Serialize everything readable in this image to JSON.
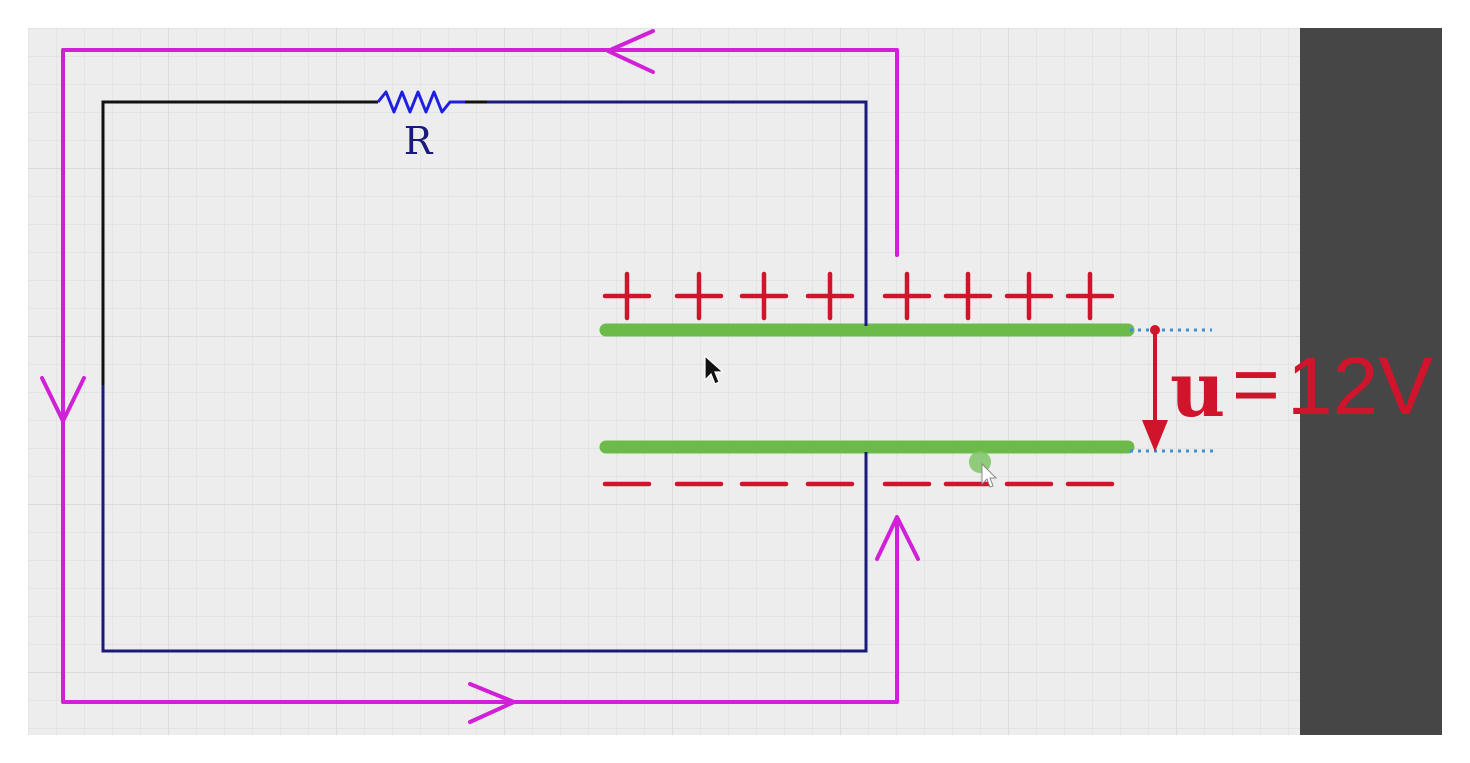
{
  "labels": {
    "resistor": "R",
    "voltage_symbol": "u",
    "voltage_equals": "=",
    "voltage_value": "12V"
  },
  "charges": {
    "top_plate_sign": "+",
    "top_plate_count": 8,
    "bottom_plate_sign": "−",
    "bottom_plate_count": 8
  },
  "colors": {
    "background": "#ededed",
    "grid": "#d8d8d8",
    "wire": "#1a1a7a",
    "wire_black": "#111111",
    "current_path": "#d21fd8",
    "plate": "#6cba4a",
    "charge": "#d0142b",
    "voltage": "#d0142b",
    "dotted_guide": "#3d8fd6",
    "side_panel": "#474647"
  },
  "icons": {
    "cursor": "mouse-pointer-icon",
    "cursor_secondary": "hand-cursor-icon"
  }
}
